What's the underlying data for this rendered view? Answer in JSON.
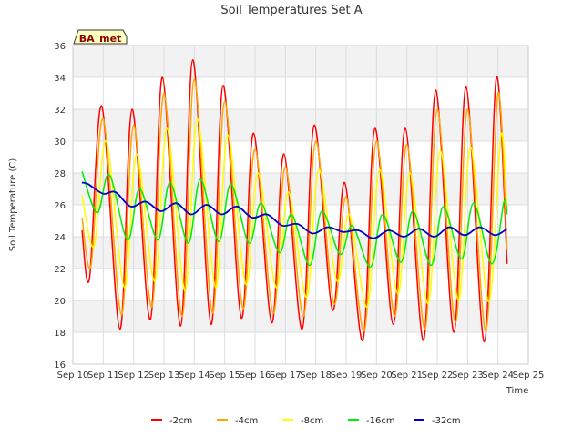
{
  "chart_data": {
    "type": "line",
    "title": "Soil Temperatures Set A",
    "xlabel": "Time",
    "ylabel": "Soil Temperature (C)",
    "ylim": [
      16,
      36
    ],
    "yticks": [
      16,
      18,
      20,
      22,
      24,
      26,
      28,
      30,
      32,
      34,
      36
    ],
    "xlim": [
      10,
      25
    ],
    "xticks": [
      {
        "x": 10,
        "label": "Sep 10"
      },
      {
        "x": 11,
        "label": "Sep 11"
      },
      {
        "x": 12,
        "label": "Sep 12"
      },
      {
        "x": 13,
        "label": "Sep 13"
      },
      {
        "x": 14,
        "label": "Sep 14"
      },
      {
        "x": 15,
        "label": "Sep 15"
      },
      {
        "x": 16,
        "label": "Sep 16"
      },
      {
        "x": 17,
        "label": "Sep 17"
      },
      {
        "x": 18,
        "label": "Sep 18"
      },
      {
        "x": 19,
        "label": "Sep 19"
      },
      {
        "x": 20,
        "label": "Sep 20"
      },
      {
        "x": 21,
        "label": "Sep 21"
      },
      {
        "x": 22,
        "label": "Sep 22"
      },
      {
        "x": 23,
        "label": "Sep 23"
      },
      {
        "x": 24,
        "label": "Sep 24"
      },
      {
        "x": 25,
        "label": "Sep 25"
      }
    ],
    "grid": true,
    "legend_position": "bottom",
    "badge": "BA_met",
    "series": [
      {
        "name": "-2cm",
        "color": "#ff0000",
        "width": 1.5,
        "points": [
          [
            10.3,
            24.4
          ],
          [
            10.55,
            21.4
          ],
          [
            10.95,
            32.2
          ],
          [
            11.55,
            18.2
          ],
          [
            11.95,
            32.0
          ],
          [
            12.55,
            18.8
          ],
          [
            12.95,
            34.0
          ],
          [
            13.55,
            18.4
          ],
          [
            13.95,
            35.1
          ],
          [
            14.55,
            18.5
          ],
          [
            14.95,
            33.5
          ],
          [
            15.55,
            18.9
          ],
          [
            15.95,
            30.5
          ],
          [
            16.55,
            18.6
          ],
          [
            16.95,
            29.2
          ],
          [
            17.55,
            18.2
          ],
          [
            17.95,
            31.0
          ],
          [
            18.55,
            19.4
          ],
          [
            18.95,
            27.4
          ],
          [
            19.55,
            17.5
          ],
          [
            19.95,
            30.8
          ],
          [
            20.55,
            18.5
          ],
          [
            20.95,
            30.8
          ],
          [
            21.55,
            17.5
          ],
          [
            21.95,
            33.2
          ],
          [
            22.55,
            18.0
          ],
          [
            22.95,
            33.4
          ],
          [
            23.55,
            17.4
          ],
          [
            23.95,
            34.0
          ],
          [
            24.3,
            22.3
          ]
        ]
      },
      {
        "name": "-4cm",
        "color": "#ffa500",
        "width": 1.5,
        "points": [
          [
            10.3,
            25.2
          ],
          [
            10.6,
            22.2
          ],
          [
            11.0,
            31.4
          ],
          [
            11.6,
            19.1
          ],
          [
            12.0,
            31.0
          ],
          [
            12.6,
            19.6
          ],
          [
            13.0,
            33.0
          ],
          [
            13.6,
            19.0
          ],
          [
            14.0,
            33.9
          ],
          [
            14.6,
            19.2
          ],
          [
            15.0,
            32.5
          ],
          [
            15.6,
            19.5
          ],
          [
            16.0,
            29.5
          ],
          [
            16.6,
            19.2
          ],
          [
            17.0,
            28.4
          ],
          [
            17.6,
            19.0
          ],
          [
            18.0,
            30.0
          ],
          [
            18.6,
            19.8
          ],
          [
            19.0,
            26.5
          ],
          [
            19.6,
            18.1
          ],
          [
            20.0,
            30.0
          ],
          [
            20.6,
            19.0
          ],
          [
            21.0,
            29.8
          ],
          [
            21.6,
            18.2
          ],
          [
            22.0,
            32.0
          ],
          [
            22.6,
            18.6
          ],
          [
            23.0,
            32.0
          ],
          [
            23.6,
            18.1
          ],
          [
            24.0,
            33.0
          ],
          [
            24.3,
            23.2
          ]
        ]
      },
      {
        "name": "-8cm",
        "color": "#ffff00",
        "width": 1.5,
        "points": [
          [
            10.3,
            26.6
          ],
          [
            10.7,
            23.4
          ],
          [
            11.1,
            30.0
          ],
          [
            11.7,
            20.8
          ],
          [
            12.1,
            29.2
          ],
          [
            12.7,
            21.2
          ],
          [
            13.1,
            30.8
          ],
          [
            13.7,
            20.6
          ],
          [
            14.1,
            31.4
          ],
          [
            14.7,
            20.8
          ],
          [
            15.1,
            30.4
          ],
          [
            15.7,
            21.0
          ],
          [
            16.1,
            28.0
          ],
          [
            16.7,
            20.8
          ],
          [
            17.1,
            26.8
          ],
          [
            17.7,
            20.2
          ],
          [
            18.1,
            28.2
          ],
          [
            18.7,
            21.2
          ],
          [
            19.1,
            25.4
          ],
          [
            19.7,
            19.6
          ],
          [
            20.1,
            28.2
          ],
          [
            20.7,
            20.4
          ],
          [
            21.1,
            28.0
          ],
          [
            21.7,
            19.8
          ],
          [
            22.1,
            29.4
          ],
          [
            22.7,
            20.0
          ],
          [
            23.1,
            29.6
          ],
          [
            23.7,
            19.9
          ],
          [
            24.1,
            30.4
          ],
          [
            24.3,
            25.6
          ]
        ]
      },
      {
        "name": "-16cm",
        "color": "#00ee00",
        "width": 1.5,
        "points": [
          [
            10.3,
            28.1
          ],
          [
            10.8,
            25.5
          ],
          [
            11.2,
            27.9
          ],
          [
            11.8,
            23.8
          ],
          [
            12.2,
            27.0
          ],
          [
            12.8,
            23.8
          ],
          [
            13.2,
            27.4
          ],
          [
            13.8,
            23.6
          ],
          [
            14.2,
            27.6
          ],
          [
            14.8,
            23.7
          ],
          [
            15.2,
            27.3
          ],
          [
            15.8,
            23.6
          ],
          [
            16.2,
            26.1
          ],
          [
            16.8,
            23.0
          ],
          [
            17.2,
            25.4
          ],
          [
            17.8,
            22.2
          ],
          [
            18.2,
            25.6
          ],
          [
            18.8,
            22.9
          ],
          [
            19.2,
            24.7
          ],
          [
            19.8,
            22.1
          ],
          [
            20.2,
            25.4
          ],
          [
            20.8,
            22.4
          ],
          [
            21.2,
            25.6
          ],
          [
            21.8,
            22.2
          ],
          [
            22.2,
            25.9
          ],
          [
            22.8,
            22.6
          ],
          [
            23.2,
            26.1
          ],
          [
            23.8,
            22.3
          ],
          [
            24.2,
            26.2
          ],
          [
            24.3,
            25.4
          ]
        ]
      },
      {
        "name": "-32cm",
        "color": "#0000cc",
        "width": 1.8,
        "points": [
          [
            10.3,
            27.4
          ],
          [
            10.5,
            27.3
          ],
          [
            11.0,
            26.7
          ],
          [
            11.4,
            26.8
          ],
          [
            11.9,
            25.9
          ],
          [
            12.4,
            26.2
          ],
          [
            12.9,
            25.6
          ],
          [
            13.4,
            26.1
          ],
          [
            13.9,
            25.4
          ],
          [
            14.4,
            26.0
          ],
          [
            14.9,
            25.4
          ],
          [
            15.4,
            25.9
          ],
          [
            15.9,
            25.2
          ],
          [
            16.4,
            25.4
          ],
          [
            16.9,
            24.7
          ],
          [
            17.4,
            24.8
          ],
          [
            17.9,
            24.2
          ],
          [
            18.4,
            24.6
          ],
          [
            18.9,
            24.3
          ],
          [
            19.4,
            24.4
          ],
          [
            19.9,
            23.9
          ],
          [
            20.4,
            24.4
          ],
          [
            20.9,
            24.0
          ],
          [
            21.4,
            24.5
          ],
          [
            21.9,
            24.0
          ],
          [
            22.4,
            24.6
          ],
          [
            22.9,
            24.1
          ],
          [
            23.4,
            24.6
          ],
          [
            23.9,
            24.1
          ],
          [
            24.3,
            24.5
          ]
        ]
      }
    ]
  }
}
